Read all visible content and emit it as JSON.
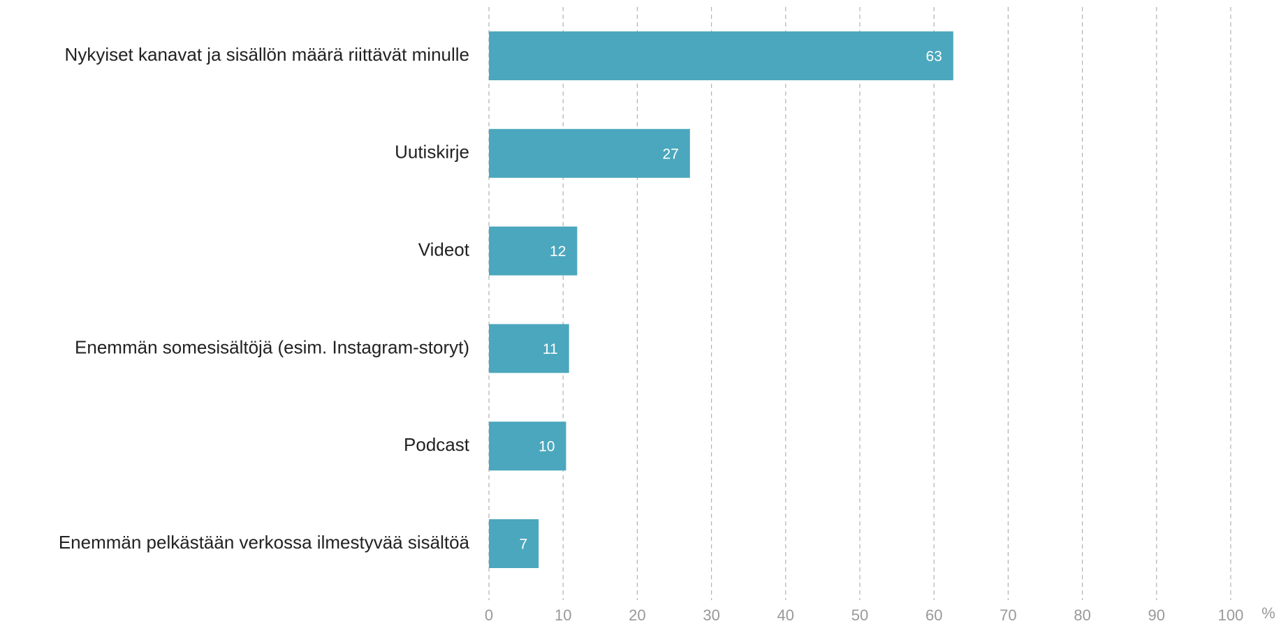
{
  "chart_data": {
    "type": "barh",
    "categories": [
      "Nykyiset kanavat ja sisällön määrä riittävät minulle",
      "Uutiskirje",
      "Videot",
      "Enemmän somesisältöjä (esim. Instagram-storyt)",
      "Podcast",
      "Enemmän pelkästään verkossa ilmestyvää sisältöä"
    ],
    "values": [
      62.6,
      27.1,
      11.9,
      10.8,
      10.4,
      6.7
    ],
    "value_labels": [
      "63",
      "27",
      "12",
      "11",
      "10",
      "7"
    ],
    "color": "#4ba7bd",
    "xlabel": "%",
    "xlim": [
      0,
      100
    ],
    "xticks": [
      0,
      10,
      20,
      30,
      40,
      50,
      60,
      70,
      80,
      90,
      100
    ],
    "grid": true
  }
}
